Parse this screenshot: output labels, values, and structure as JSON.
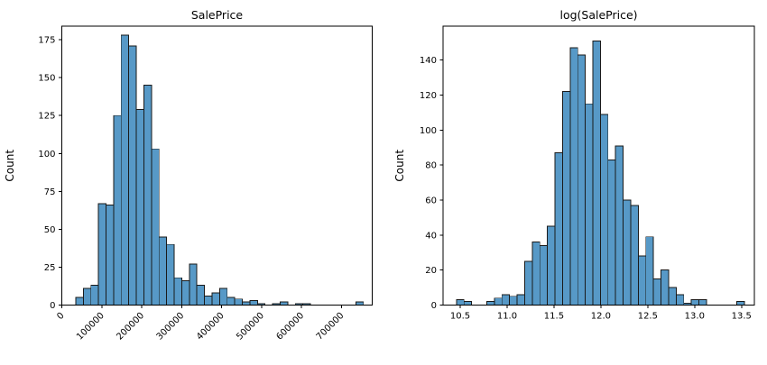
{
  "figure": {
    "background": "#ffffff",
    "bar_fill": "#5799c7",
    "bar_edge": "#1a1a1a",
    "spine_color": "#000000"
  },
  "chart_data": [
    {
      "type": "histogram",
      "title": "SalePrice",
      "xlabel": "",
      "ylabel": "Count",
      "bin_start": 34900,
      "bin_width": 18950,
      "counts": [
        5,
        11,
        13,
        67,
        66,
        125,
        178,
        171,
        129,
        145,
        103,
        45,
        40,
        18,
        16,
        27,
        13,
        6,
        8,
        11,
        5,
        4,
        2,
        3,
        1,
        0,
        1,
        2,
        0,
        1,
        1,
        0,
        0,
        0,
        0,
        0,
        0,
        2
      ],
      "xlim": [
        0,
        777000
      ],
      "ylim": [
        0,
        184
      ],
      "grid": false,
      "x_tick_rotation": 45,
      "x_ticks": [
        {
          "v": 0,
          "label": "0"
        },
        {
          "v": 100000,
          "label": "100000"
        },
        {
          "v": 200000,
          "label": "200000"
        },
        {
          "v": 300000,
          "label": "300000"
        },
        {
          "v": 400000,
          "label": "400000"
        },
        {
          "v": 500000,
          "label": "500000"
        },
        {
          "v": 600000,
          "label": "600000"
        },
        {
          "v": 700000,
          "label": "700000"
        }
      ],
      "y_ticks": [
        {
          "v": 0,
          "label": "0"
        },
        {
          "v": 25,
          "label": "25"
        },
        {
          "v": 50,
          "label": "50"
        },
        {
          "v": 75,
          "label": "75"
        },
        {
          "v": 100,
          "label": "100"
        },
        {
          "v": 125,
          "label": "125"
        },
        {
          "v": 150,
          "label": "150"
        },
        {
          "v": 175,
          "label": "175"
        }
      ]
    },
    {
      "type": "histogram",
      "title": "log(SalePrice)",
      "xlabel": "",
      "ylabel": "Count",
      "bin_start": 10.46,
      "bin_width": 0.0808,
      "counts": [
        3,
        2,
        0,
        0,
        2,
        4,
        6,
        5,
        6,
        25,
        36,
        34,
        45,
        87,
        122,
        147,
        143,
        115,
        151,
        109,
        83,
        91,
        60,
        57,
        28,
        39,
        15,
        20,
        10,
        6,
        1,
        3,
        3,
        0,
        0,
        0,
        0,
        2
      ],
      "xlim": [
        10.317,
        13.637
      ],
      "ylim": [
        0,
        159.4
      ],
      "grid": false,
      "x_tick_rotation": 0,
      "x_ticks": [
        {
          "v": 10.5,
          "label": "10.5"
        },
        {
          "v": 11.0,
          "label": "11.0"
        },
        {
          "v": 11.5,
          "label": "11.5"
        },
        {
          "v": 12.0,
          "label": "12.0"
        },
        {
          "v": 12.5,
          "label": "12.5"
        },
        {
          "v": 13.0,
          "label": "13.0"
        },
        {
          "v": 13.5,
          "label": "13.5"
        }
      ],
      "y_ticks": [
        {
          "v": 0,
          "label": "0"
        },
        {
          "v": 20,
          "label": "20"
        },
        {
          "v": 40,
          "label": "40"
        },
        {
          "v": 60,
          "label": "60"
        },
        {
          "v": 80,
          "label": "80"
        },
        {
          "v": 100,
          "label": "100"
        },
        {
          "v": 120,
          "label": "120"
        },
        {
          "v": 140,
          "label": "140"
        }
      ]
    }
  ]
}
